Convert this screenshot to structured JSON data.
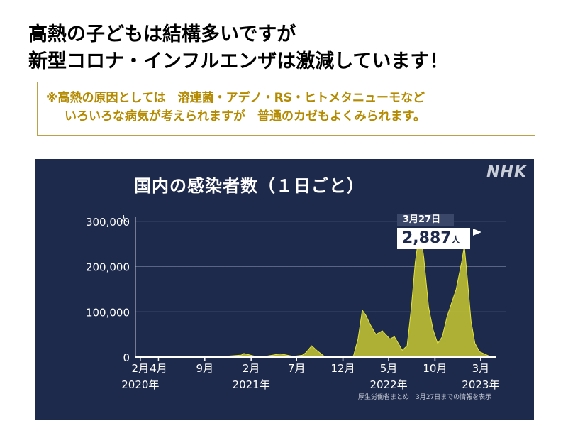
{
  "headline": {
    "line1": "高熱の子どもは結構多いですが",
    "line2": "新型コロナ・インフルエンザは激減しています！"
  },
  "notice": {
    "line1": "※高熱の原因としては　溶連菌・アデノ・RS・ヒトメタニューモなど",
    "line2": "いろいろな病気が考えられますが　普通のカゼもよくみられます。"
  },
  "chart": {
    "logo": "NHK",
    "source": "厚生労働省まとめ　3月27日までの情報を表示",
    "callout": {
      "date": "3月27日",
      "value": "2,887",
      "unit": "人"
    },
    "colors": {
      "background": "#1d2a4c",
      "fill": "#c8c832",
      "stroke": "#e2e23c",
      "grid": "#5a6585",
      "text": "#ffffff"
    }
  },
  "chart_data": {
    "type": "area",
    "title": "国内の感染者数（１日ごと）",
    "ylabel": "人",
    "ylim": [
      0,
      320000
    ],
    "yticks": [
      {
        "value": 0,
        "label": "0"
      },
      {
        "value": 100000,
        "label": "100,000"
      },
      {
        "value": 200000,
        "label": "200,000"
      },
      {
        "value": 300000,
        "label": "300,000"
      }
    ],
    "xlim": [
      "2020-01-16",
      "2023-03-27"
    ],
    "xticks": [
      {
        "x": "2020-02-01",
        "label": "2月",
        "year": "2020年"
      },
      {
        "x": "2020-04-01",
        "label": "4月",
        "year": ""
      },
      {
        "x": "2020-09-01",
        "label": "9月",
        "year": ""
      },
      {
        "x": "2021-02-01",
        "label": "2月",
        "year": "2021年"
      },
      {
        "x": "2021-07-01",
        "label": "7月",
        "year": ""
      },
      {
        "x": "2021-12-01",
        "label": "12月",
        "year": ""
      },
      {
        "x": "2022-05-01",
        "label": "5月",
        "year": "2022年"
      },
      {
        "x": "2022-10-01",
        "label": "10月",
        "year": ""
      },
      {
        "x": "2023-03-01",
        "label": "3月",
        "year": "2023年"
      }
    ],
    "series": [
      {
        "points": [
          [
            "2020-01-16",
            0
          ],
          [
            "2020-03-25",
            200
          ],
          [
            "2020-04-11",
            700
          ],
          [
            "2020-05-15",
            100
          ],
          [
            "2020-06-30",
            200
          ],
          [
            "2020-08-07",
            1600
          ],
          [
            "2020-09-15",
            500
          ],
          [
            "2020-11-20",
            2400
          ],
          [
            "2020-12-31",
            4500
          ],
          [
            "2021-01-08",
            8000
          ],
          [
            "2021-02-15",
            1500
          ],
          [
            "2021-03-20",
            1500
          ],
          [
            "2021-05-08",
            7200
          ],
          [
            "2021-06-20",
            1500
          ],
          [
            "2021-07-20",
            4000
          ],
          [
            "2021-08-01",
            10000
          ],
          [
            "2021-08-20",
            25000
          ],
          [
            "2021-09-05",
            15000
          ],
          [
            "2021-10-01",
            1500
          ],
          [
            "2021-11-15",
            200
          ],
          [
            "2021-12-25",
            400
          ],
          [
            "2022-01-05",
            3000
          ],
          [
            "2022-01-20",
            40000
          ],
          [
            "2022-02-03",
            104000
          ],
          [
            "2022-02-15",
            92000
          ],
          [
            "2022-03-01",
            72000
          ],
          [
            "2022-03-20",
            50000
          ],
          [
            "2022-04-10",
            58000
          ],
          [
            "2022-05-05",
            40000
          ],
          [
            "2022-05-20",
            45000
          ],
          [
            "2022-06-15",
            15000
          ],
          [
            "2022-07-01",
            25000
          ],
          [
            "2022-07-15",
            110000
          ],
          [
            "2022-07-28",
            210000
          ],
          [
            "2022-08-05",
            250000
          ],
          [
            "2022-08-18",
            255000
          ],
          [
            "2022-08-25",
            220000
          ],
          [
            "2022-09-10",
            110000
          ],
          [
            "2022-09-25",
            60000
          ],
          [
            "2022-10-10",
            30000
          ],
          [
            "2022-10-25",
            45000
          ],
          [
            "2022-11-10",
            90000
          ],
          [
            "2022-11-25",
            120000
          ],
          [
            "2022-12-10",
            150000
          ],
          [
            "2022-12-28",
            210000
          ],
          [
            "2023-01-06",
            246000
          ],
          [
            "2023-01-15",
            180000
          ],
          [
            "2023-01-28",
            80000
          ],
          [
            "2023-02-10",
            30000
          ],
          [
            "2023-02-25",
            12000
          ],
          [
            "2023-03-10",
            8000
          ],
          [
            "2023-03-27",
            2887
          ]
        ]
      }
    ]
  }
}
